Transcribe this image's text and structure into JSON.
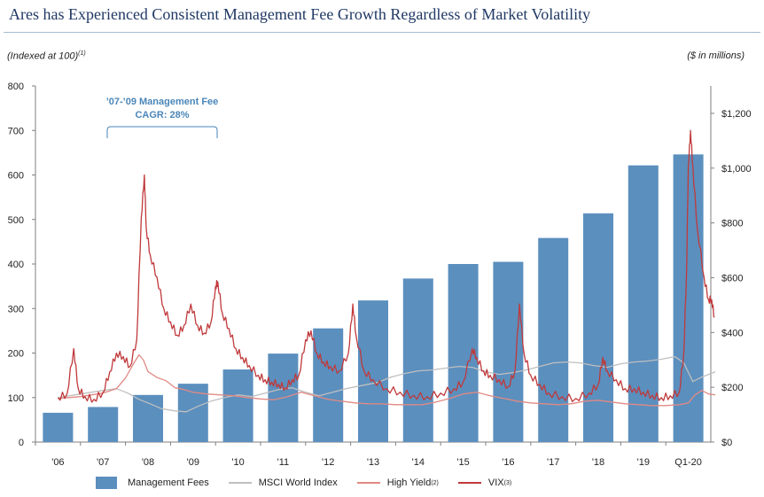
{
  "title": "Ares has Experienced Consistent Management Fee Growth Regardless of Market Volatility",
  "left_note": "(Indexed at 100)",
  "left_note_sup": "(1)",
  "right_note": "($ in millions)",
  "annotation": {
    "line1": "’07-’09 Management Fee",
    "line2": "CAGR: 28%"
  },
  "colors": {
    "bar": "#5b8fbe",
    "msci": "#bfbfbf",
    "high_yield": "#e08a84",
    "vix": "#c0393b",
    "title": "#1f3864",
    "annotation": "#4a86b8"
  },
  "chart_data": {
    "type": "bar+line",
    "categories": [
      "'06",
      "'07",
      "'08",
      "'09",
      "'10",
      "'11",
      "'12",
      "'13",
      "'14",
      "'15",
      "'16",
      "'17",
      "'18",
      "'19",
      "Q1-20"
    ],
    "left_axis": {
      "ylim": [
        0,
        800
      ],
      "ticks": [
        0,
        100,
        200,
        300,
        400,
        500,
        600,
        700,
        800
      ]
    },
    "right_axis": {
      "ylim": [
        0,
        1300
      ],
      "ticks": [
        0,
        200,
        400,
        600,
        800,
        1000,
        1200
      ],
      "tick_labels": [
        "$0",
        "$200",
        "$400",
        "$600",
        "$800",
        "$1,000",
        "$1,200"
      ]
    },
    "bars": {
      "name": "Management Fees",
      "axis": "right",
      "values": [
        107,
        128,
        172,
        213,
        265,
        323,
        415,
        517,
        597,
        650,
        658,
        745,
        835,
        1010,
        1050
      ]
    },
    "series": [
      {
        "name": "MSCI World Index",
        "axis": "left",
        "points": [
          [
            0,
            100
          ],
          [
            0.5,
            108
          ],
          [
            1.0,
            116
          ],
          [
            1.3,
            120
          ],
          [
            1.55,
            110
          ],
          [
            1.8,
            96
          ],
          [
            2.0,
            88
          ],
          [
            2.3,
            75
          ],
          [
            2.6,
            70
          ],
          [
            2.85,
            68
          ],
          [
            3.1,
            80
          ],
          [
            3.4,
            92
          ],
          [
            3.7,
            100
          ],
          [
            4.0,
            106
          ],
          [
            4.3,
            102
          ],
          [
            4.6,
            110
          ],
          [
            4.9,
            118
          ],
          [
            5.2,
            122
          ],
          [
            5.5,
            112
          ],
          [
            5.8,
            104
          ],
          [
            6.1,
            112
          ],
          [
            6.4,
            120
          ],
          [
            6.8,
            128
          ],
          [
            7.1,
            134
          ],
          [
            7.4,
            146
          ],
          [
            7.7,
            154
          ],
          [
            8.0,
            160
          ],
          [
            8.3,
            162
          ],
          [
            8.6,
            166
          ],
          [
            8.9,
            170
          ],
          [
            9.2,
            168
          ],
          [
            9.5,
            158
          ],
          [
            9.8,
            152
          ],
          [
            10.1,
            156
          ],
          [
            10.4,
            162
          ],
          [
            10.7,
            170
          ],
          [
            11.0,
            178
          ],
          [
            11.3,
            180
          ],
          [
            11.6,
            178
          ],
          [
            11.9,
            172
          ],
          [
            12.2,
            168
          ],
          [
            12.5,
            176
          ],
          [
            12.8,
            180
          ],
          [
            13.1,
            182
          ],
          [
            13.4,
            186
          ],
          [
            13.7,
            192
          ],
          [
            13.9,
            178
          ],
          [
            14.1,
            136
          ],
          [
            14.3,
            146
          ],
          [
            14.6,
            158
          ]
        ]
      },
      {
        "name": "High Yield",
        "name_sup": "(2)",
        "axis": "left",
        "points": [
          [
            0,
            98
          ],
          [
            0.5,
            102
          ],
          [
            1.0,
            110
          ],
          [
            1.3,
            120
          ],
          [
            1.5,
            144
          ],
          [
            1.7,
            180
          ],
          [
            1.8,
            196
          ],
          [
            1.9,
            184
          ],
          [
            2.0,
            158
          ],
          [
            2.2,
            145
          ],
          [
            2.4,
            138
          ],
          [
            2.6,
            122
          ],
          [
            2.8,
            118
          ],
          [
            3.0,
            112
          ],
          [
            3.3,
            108
          ],
          [
            3.6,
            106
          ],
          [
            3.9,
            104
          ],
          [
            4.2,
            100
          ],
          [
            4.5,
            97
          ],
          [
            4.8,
            95
          ],
          [
            5.1,
            102
          ],
          [
            5.4,
            112
          ],
          [
            5.7,
            104
          ],
          [
            6.0,
            96
          ],
          [
            6.3,
            92
          ],
          [
            6.6,
            88
          ],
          [
            6.9,
            86
          ],
          [
            7.2,
            86
          ],
          [
            7.5,
            84
          ],
          [
            7.8,
            84
          ],
          [
            8.1,
            84
          ],
          [
            8.4,
            90
          ],
          [
            8.7,
            98
          ],
          [
            9.0,
            108
          ],
          [
            9.3,
            112
          ],
          [
            9.6,
            104
          ],
          [
            9.9,
            98
          ],
          [
            10.2,
            92
          ],
          [
            10.5,
            88
          ],
          [
            10.8,
            86
          ],
          [
            11.1,
            84
          ],
          [
            11.4,
            86
          ],
          [
            11.7,
            92
          ],
          [
            12.0,
            94
          ],
          [
            12.3,
            90
          ],
          [
            12.6,
            86
          ],
          [
            12.9,
            84
          ],
          [
            13.2,
            82
          ],
          [
            13.5,
            82
          ],
          [
            13.8,
            84
          ],
          [
            14.0,
            88
          ],
          [
            14.15,
            106
          ],
          [
            14.3,
            116
          ],
          [
            14.45,
            108
          ],
          [
            14.6,
            106
          ]
        ]
      },
      {
        "name": "VIX",
        "name_sup": "(3)",
        "axis": "left",
        "points": [
          [
            0,
            100
          ],
          [
            0.2,
            108
          ],
          [
            0.35,
            210
          ],
          [
            0.45,
            120
          ],
          [
            0.6,
            102
          ],
          [
            0.8,
            96
          ],
          [
            1.0,
            112
          ],
          [
            1.15,
            158
          ],
          [
            1.3,
            200
          ],
          [
            1.45,
            192
          ],
          [
            1.6,
            170
          ],
          [
            1.75,
            230
          ],
          [
            1.85,
            505
          ],
          [
            1.92,
            600
          ],
          [
            1.96,
            480
          ],
          [
            2.05,
            420
          ],
          [
            2.2,
            370
          ],
          [
            2.35,
            300
          ],
          [
            2.5,
            270
          ],
          [
            2.65,
            240
          ],
          [
            2.8,
            262
          ],
          [
            2.95,
            310
          ],
          [
            3.1,
            262
          ],
          [
            3.25,
            245
          ],
          [
            3.4,
            270
          ],
          [
            3.5,
            350
          ],
          [
            3.55,
            360
          ],
          [
            3.65,
            290
          ],
          [
            3.8,
            255
          ],
          [
            3.95,
            210
          ],
          [
            4.1,
            190
          ],
          [
            4.25,
            172
          ],
          [
            4.45,
            150
          ],
          [
            4.6,
            140
          ],
          [
            4.75,
            135
          ],
          [
            4.9,
            130
          ],
          [
            5.05,
            122
          ],
          [
            5.2,
            140
          ],
          [
            5.35,
            150
          ],
          [
            5.5,
            230
          ],
          [
            5.62,
            250
          ],
          [
            5.75,
            200
          ],
          [
            5.9,
            180
          ],
          [
            6.05,
            170
          ],
          [
            6.25,
            160
          ],
          [
            6.45,
            200
          ],
          [
            6.55,
            310
          ],
          [
            6.62,
            240
          ],
          [
            6.8,
            160
          ],
          [
            7.0,
            140
          ],
          [
            7.3,
            120
          ],
          [
            7.6,
            112
          ],
          [
            7.9,
            105
          ],
          [
            8.2,
            102
          ],
          [
            8.5,
            110
          ],
          [
            8.8,
            120
          ],
          [
            9.0,
            135
          ],
          [
            9.2,
            210
          ],
          [
            9.3,
            190
          ],
          [
            9.45,
            160
          ],
          [
            9.6,
            150
          ],
          [
            9.8,
            140
          ],
          [
            10.0,
            125
          ],
          [
            10.15,
            160
          ],
          [
            10.25,
            310
          ],
          [
            10.35,
            200
          ],
          [
            10.5,
            150
          ],
          [
            10.7,
            130
          ],
          [
            10.9,
            110
          ],
          [
            11.2,
            102
          ],
          [
            11.5,
            98
          ],
          [
            11.8,
            110
          ],
          [
            12.0,
            130
          ],
          [
            12.1,
            190
          ],
          [
            12.2,
            160
          ],
          [
            12.4,
            140
          ],
          [
            12.6,
            120
          ],
          [
            12.8,
            120
          ],
          [
            13.0,
            112
          ],
          [
            13.2,
            105
          ],
          [
            13.4,
            100
          ],
          [
            13.6,
            104
          ],
          [
            13.8,
            112
          ],
          [
            13.9,
            200
          ],
          [
            13.96,
            380
          ],
          [
            14.0,
            620
          ],
          [
            14.05,
            700
          ],
          [
            14.1,
            620
          ],
          [
            14.2,
            480
          ],
          [
            14.35,
            370
          ],
          [
            14.45,
            320
          ],
          [
            14.52,
            320
          ],
          [
            14.58,
            280
          ]
        ]
      }
    ]
  }
}
